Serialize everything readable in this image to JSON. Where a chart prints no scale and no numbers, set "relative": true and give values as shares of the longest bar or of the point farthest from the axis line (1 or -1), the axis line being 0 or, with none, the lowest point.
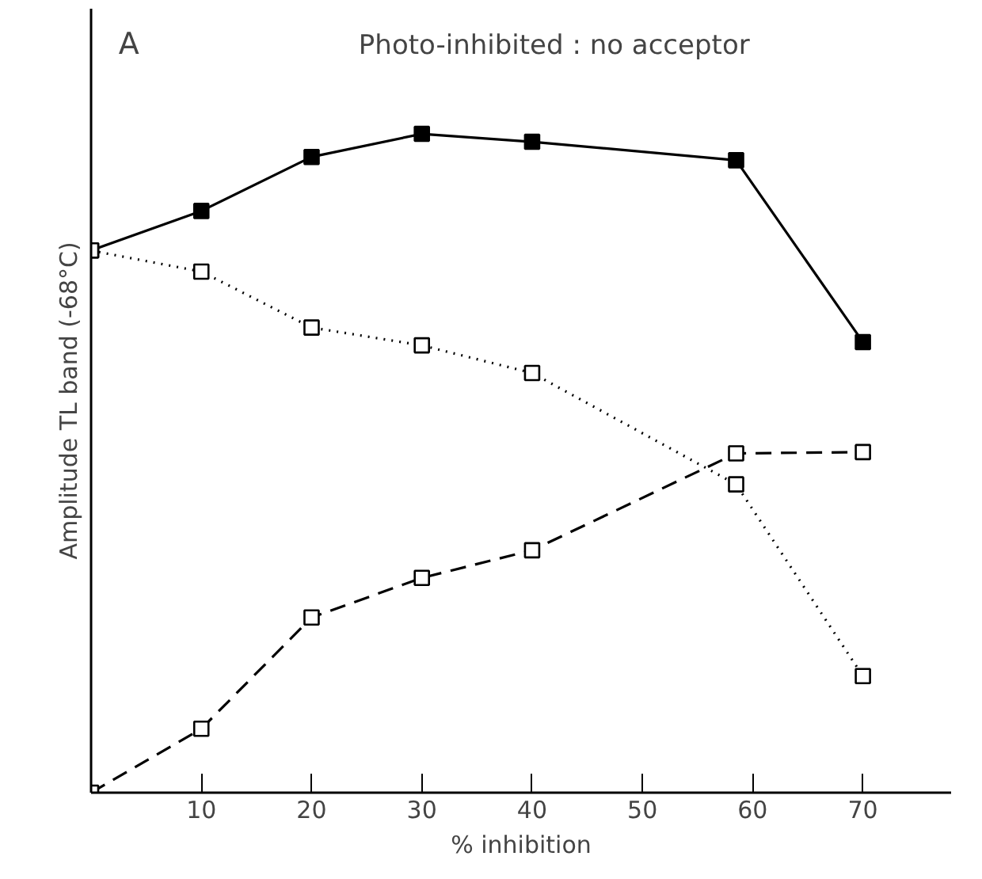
{
  "chart_data": {
    "type": "line",
    "title": "Photo-inhibited : no acceptor",
    "annotations": [
      "A"
    ],
    "xlabel": "% inhibition",
    "ylabel": "Amplitude TL band (-68°C)",
    "relative": true,
    "xlim": [
      0,
      78
    ],
    "xticks": [
      10,
      20,
      30,
      40,
      50,
      60,
      70
    ],
    "grid": false,
    "marker": "square",
    "series": [
      {
        "color": "#000000",
        "line_style": "solid",
        "x": [
          0,
          10,
          20,
          30,
          40,
          58.5,
          70
        ],
        "values": [
          0.823,
          0.883,
          0.965,
          1,
          0.988,
          0.96,
          0.684
        ]
      },
      {
        "color": "#000000",
        "line_style": "dotted",
        "x": [
          0,
          10,
          20,
          30,
          40,
          58.5,
          70
        ],
        "values": [
          0.823,
          0.791,
          0.706,
          0.679,
          0.637,
          0.468,
          0.177
        ]
      },
      {
        "color": "#000000",
        "line_style": "dashed",
        "x": [
          0,
          10,
          20,
          30,
          40,
          58.5,
          70
        ],
        "values": [
          0,
          0.097,
          0.266,
          0.326,
          0.368,
          0.515,
          0.517
        ]
      }
    ]
  }
}
